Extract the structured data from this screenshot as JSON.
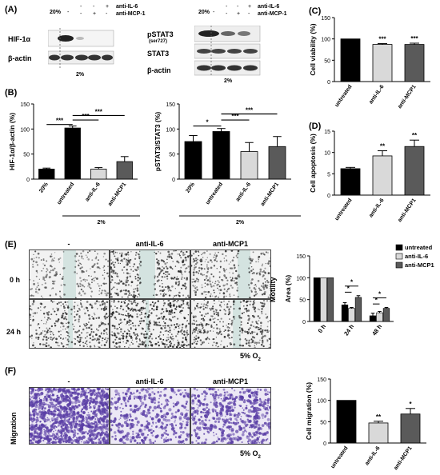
{
  "panels": {
    "A": "(A)",
    "B": "(B)",
    "C": "(C)",
    "D": "(D)",
    "E": "(E)",
    "F": "(F)"
  },
  "blot_left": {
    "header_rows": [
      {
        "label": "anti-IL-6",
        "marks": [
          "-",
          "-",
          "+"
        ]
      },
      {
        "label": "anti-MCP-1",
        "marks": [
          "-",
          "+",
          "-"
        ]
      }
    ],
    "o2_label": "20%",
    "o2_mark": "-",
    "rows": [
      "HIF-1α",
      "β-actin"
    ],
    "bottom": "2%"
  },
  "blot_right": {
    "header_rows": [
      {
        "label": "anti-IL-6",
        "marks": [
          "-",
          "-",
          "+"
        ]
      },
      {
        "label": "anti-MCP-1",
        "marks": [
          "-",
          "+",
          "-"
        ]
      }
    ],
    "o2_label": "20%",
    "o2_mark": "-",
    "rows": [
      "pSTAT3",
      "(ser727)",
      "STAT3",
      "β-actin"
    ],
    "bottom": "2%"
  },
  "microscopy": {
    "columns": [
      "-",
      "anti-IL-6",
      "anti-MCP1"
    ],
    "rows": [
      "0 h",
      "24 h"
    ],
    "o2": "5% O",
    "o2_sub": "2",
    "side_label": "Motility",
    "migration_columns": [
      "-",
      "anti-IL-6",
      "anti-MCP1"
    ],
    "migration_label": "Migration"
  },
  "colors": {
    "black": "#000000",
    "light": "#d9d9d9",
    "dark": "#5a5a5a",
    "wound": "#bcd7d2",
    "stain": "#5b3fa6"
  },
  "chart_data": [
    {
      "id": "B1",
      "type": "bar",
      "categories": [
        "20%",
        "untreated",
        "anti-IL-6",
        "anti-MCP1"
      ],
      "values": [
        20,
        102,
        20,
        35
      ],
      "errors": [
        2,
        4,
        3,
        10
      ],
      "colors": [
        "black",
        "black",
        "light",
        "dark"
      ],
      "ylabel": "HIF-1α/β-actin (%)",
      "ylim": [
        0,
        150
      ],
      "yticks": [
        0,
        50,
        100,
        150
      ],
      "ytick_labels": [
        "0",
        "50",
        "100",
        "150"
      ],
      "group_label": "2%",
      "sig": [
        {
          "from": 0,
          "to": 1,
          "label": "***"
        },
        {
          "from": 1,
          "to": 2,
          "label": "***"
        },
        {
          "from": 1,
          "to": 3,
          "label": "***"
        }
      ]
    },
    {
      "id": "B2",
      "type": "bar",
      "categories": [
        "20%",
        "untreated",
        "anti-IL-6",
        "anti-MCP1"
      ],
      "values": [
        75,
        95,
        55,
        65
      ],
      "errors": [
        12,
        6,
        18,
        20
      ],
      "colors": [
        "black",
        "black",
        "light",
        "dark"
      ],
      "ylabel": "pSTAT3/STAT3 (%)",
      "ylim": [
        0,
        150
      ],
      "yticks": [
        0,
        50,
        100,
        150
      ],
      "ytick_labels": [
        "0",
        "50",
        "100",
        "150"
      ],
      "group_label": "2%",
      "sig": [
        {
          "from": 0,
          "to": 1,
          "label": "*"
        },
        {
          "from": 1,
          "to": 2,
          "label": "***"
        },
        {
          "from": 1,
          "to": 3,
          "label": "***"
        }
      ]
    },
    {
      "id": "C",
      "type": "bar",
      "categories": [
        "untreated",
        "anti-IL-6",
        "anti-MCP1"
      ],
      "values": [
        100,
        87,
        87
      ],
      "errors": [
        0,
        2,
        3
      ],
      "colors": [
        "black",
        "light",
        "dark"
      ],
      "ylabel": "Cell viability (%)",
      "ylim": [
        0,
        150
      ],
      "yticks": [
        0,
        50,
        100,
        150
      ],
      "ytick_labels": [
        "0",
        "50",
        "100",
        "150"
      ],
      "stars": [
        "",
        "***",
        "***"
      ]
    },
    {
      "id": "D",
      "type": "bar",
      "categories": [
        "untreated",
        "anti-IL-6",
        "anti-MCP1"
      ],
      "values": [
        6.2,
        9.2,
        11.4
      ],
      "errors": [
        0.3,
        1.2,
        1.5
      ],
      "colors": [
        "black",
        "light",
        "dark"
      ],
      "ylabel": "Cell apoptosis (%)",
      "ylim": [
        0,
        15
      ],
      "yticks": [
        0,
        5,
        10,
        15
      ],
      "ytick_labels": [
        "0",
        "5",
        "10",
        "15"
      ],
      "stars": [
        "",
        "**",
        "**"
      ]
    },
    {
      "id": "E",
      "type": "bar",
      "categories": [
        "0 h",
        "24 h",
        "48 h"
      ],
      "series": [
        {
          "name": "untreated",
          "values": [
            100,
            38,
            13
          ],
          "errors": [
            0,
            5,
            6
          ],
          "color": "black"
        },
        {
          "name": "anti-IL-6",
          "values": [
            100,
            30,
            20
          ],
          "errors": [
            0,
            2,
            3
          ],
          "color": "light"
        },
        {
          "name": "anti-MCP1",
          "values": [
            100,
            55,
            30
          ],
          "errors": [
            0,
            4,
            2
          ],
          "color": "dark"
        }
      ],
      "ylabel": "Area (%)",
      "ylim": [
        0,
        150
      ],
      "yticks": [
        0,
        50,
        100,
        150
      ],
      "ytick_labels": [
        "0",
        "50",
        "100",
        "150"
      ],
      "legend": "top-right",
      "sig": [
        {
          "group": 1,
          "from": 0,
          "to": 1,
          "label": "*"
        },
        {
          "group": 1,
          "from": 0,
          "to": 2,
          "label": "*"
        },
        {
          "group": 2,
          "from": 0,
          "to": 1,
          "label": "*"
        },
        {
          "group": 2,
          "from": 0,
          "to": 2,
          "label": "*"
        }
      ]
    },
    {
      "id": "F",
      "type": "bar",
      "categories": [
        "untreated",
        "anti-IL-6",
        "anti-MCP1"
      ],
      "values": [
        100,
        47,
        68
      ],
      "errors": [
        0,
        4,
        13
      ],
      "colors": [
        "black",
        "light",
        "dark"
      ],
      "ylabel": "Cell migration (%)",
      "ylim": [
        0,
        150
      ],
      "yticks": [
        0,
        50,
        100,
        150
      ],
      "ytick_labels": [
        "0",
        "50",
        "100",
        "150"
      ],
      "stars": [
        "",
        "**",
        "*"
      ]
    }
  ]
}
